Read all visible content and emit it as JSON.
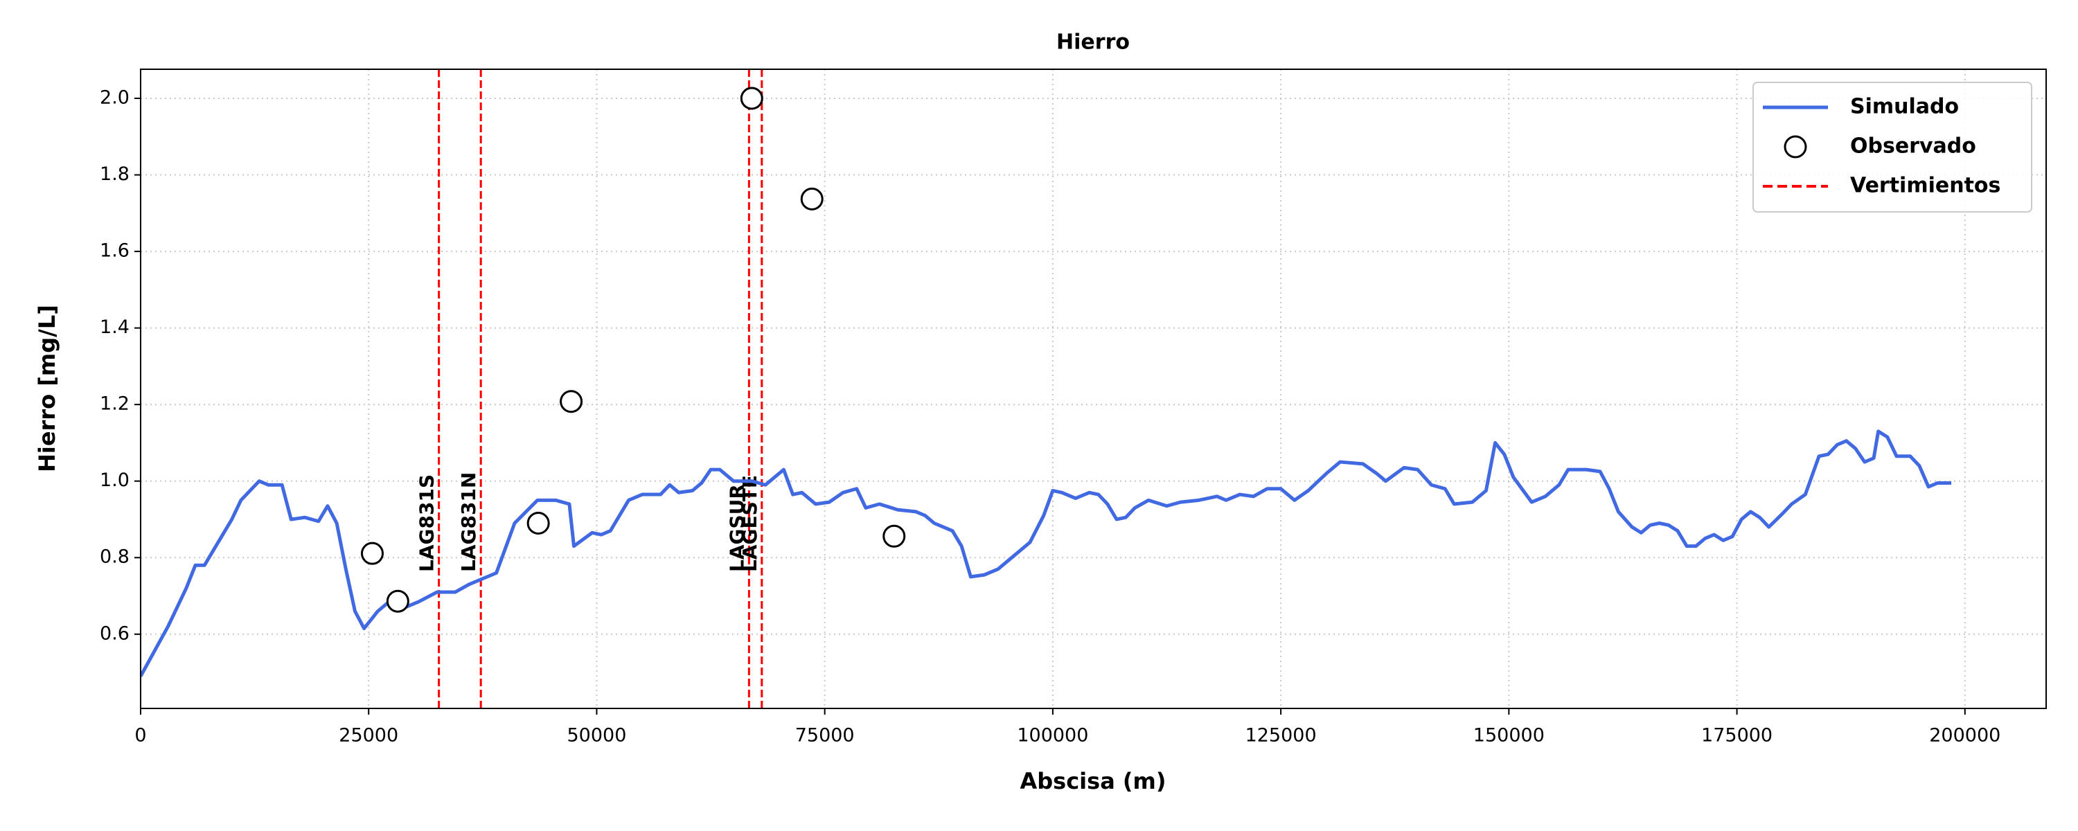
{
  "chart_data": {
    "type": "line",
    "title": "Hierro",
    "x_label": "Abscisa (m)",
    "y_label": "Hierro [mg/L]",
    "xlim": [
      0,
      208900
    ],
    "ylim": [
      0.406,
      2.076
    ],
    "xticks": [
      0,
      25000,
      50000,
      75000,
      100000,
      125000,
      150000,
      175000,
      200000
    ],
    "yticks": [
      {
        "value": 0.6,
        "label": "0.6"
      },
      {
        "value": 0.8,
        "label": "0.8"
      },
      {
        "value": 1.0,
        "label": "1.0"
      },
      {
        "value": 1.2,
        "label": "1.2"
      },
      {
        "value": 1.4,
        "label": "1.4"
      },
      {
        "value": 1.6,
        "label": "1.6"
      },
      {
        "value": 1.8,
        "label": "1.8"
      },
      {
        "value": 2.0,
        "label": "2.0"
      }
    ],
    "grid": true,
    "legend": "upper right",
    "series": [
      {
        "name": "Simulado",
        "type": "line",
        "color": "#4169e1",
        "x": [
          0,
          3000,
          5000,
          6000,
          7000,
          8000,
          10000,
          11000,
          13000,
          14000,
          15500,
          16500,
          18000,
          19500,
          20500,
          21500,
          22500,
          23500,
          24500,
          26000,
          27500,
          29000,
          30500,
          32500,
          34500,
          36000,
          38000,
          39000,
          41000,
          43500,
          45500,
          47000,
          47500,
          49500,
          50500,
          51500,
          53500,
          55000,
          57000,
          58000,
          59000,
          60500,
          61500,
          62500,
          63500,
          65000,
          67000,
          68500,
          70500,
          71500,
          72500,
          74000,
          75500,
          77000,
          78500,
          79500,
          81000,
          83000,
          85000,
          86000,
          87000,
          89000,
          90000,
          91000,
          92500,
          94000,
          96000,
          97500,
          99000,
          100000,
          101000,
          102500,
          104000,
          105000,
          106000,
          107000,
          108000,
          109000,
          110500,
          112500,
          114000,
          116000,
          118000,
          119000,
          120500,
          122000,
          123500,
          125000,
          126500,
          128000,
          130000,
          131500,
          134000,
          135500,
          136500,
          138500,
          140000,
          141500,
          143000,
          144000,
          146000,
          147500,
          148500,
          149500,
          150500,
          152500,
          154000,
          155500,
          156500,
          158500,
          160000,
          161000,
          162000,
          163500,
          164500,
          165500,
          166500,
          167500,
          168500,
          169500,
          170500,
          171500,
          172500,
          173500,
          174500,
          175500,
          176500,
          177500,
          178500,
          180000,
          181000,
          182500,
          184000,
          185000,
          186000,
          187000,
          188000,
          189000,
          190000,
          190500,
          191500,
          192500,
          194000,
          195000,
          196000,
          197000,
          198500
        ],
        "values": [
          0.49,
          0.62,
          0.72,
          0.78,
          0.78,
          0.82,
          0.9,
          0.95,
          1.0,
          0.99,
          0.99,
          0.9,
          0.905,
          0.895,
          0.935,
          0.89,
          0.77,
          0.66,
          0.615,
          0.66,
          0.69,
          0.67,
          0.685,
          0.71,
          0.71,
          0.73,
          0.75,
          0.76,
          0.89,
          0.95,
          0.95,
          0.94,
          0.83,
          0.865,
          0.86,
          0.87,
          0.95,
          0.965,
          0.965,
          0.99,
          0.97,
          0.975,
          0.995,
          1.03,
          1.03,
          1.0,
          1.0,
          0.99,
          1.03,
          0.965,
          0.97,
          0.94,
          0.945,
          0.97,
          0.98,
          0.93,
          0.94,
          0.925,
          0.92,
          0.91,
          0.89,
          0.87,
          0.83,
          0.75,
          0.755,
          0.77,
          0.81,
          0.84,
          0.91,
          0.975,
          0.97,
          0.955,
          0.97,
          0.965,
          0.94,
          0.9,
          0.905,
          0.93,
          0.95,
          0.935,
          0.945,
          0.95,
          0.96,
          0.95,
          0.965,
          0.96,
          0.98,
          0.98,
          0.95,
          0.975,
          1.02,
          1.05,
          1.045,
          1.02,
          1.0,
          1.035,
          1.03,
          0.99,
          0.98,
          0.94,
          0.945,
          0.975,
          1.1,
          1.07,
          1.01,
          0.945,
          0.96,
          0.99,
          1.03,
          1.03,
          1.025,
          0.98,
          0.92,
          0.88,
          0.865,
          0.885,
          0.89,
          0.885,
          0.87,
          0.83,
          0.83,
          0.85,
          0.86,
          0.845,
          0.855,
          0.9,
          0.92,
          0.905,
          0.88,
          0.915,
          0.94,
          0.965,
          1.065,
          1.07,
          1.095,
          1.105,
          1.085,
          1.05,
          1.06,
          1.13,
          1.115,
          1.065,
          1.065,
          1.04,
          0.985,
          0.995,
          0.995
        ]
      },
      {
        "name": "Observado",
        "type": "scatter",
        "color": "#000000",
        "x": [
          25400,
          28200,
          43600,
          47200,
          67000,
          73600,
          82600
        ],
        "values": [
          0.811,
          0.686,
          0.89,
          1.208,
          2.0,
          1.737,
          0.856
        ]
      }
    ],
    "vlines": {
      "name": "Vertimientos",
      "color": "#ff0000",
      "x": [
        32700,
        37300,
        66700,
        68100
      ],
      "labels": [
        "LAG831S",
        "LAG831N",
        "LAGSUR",
        "LAGESTE"
      ]
    }
  }
}
